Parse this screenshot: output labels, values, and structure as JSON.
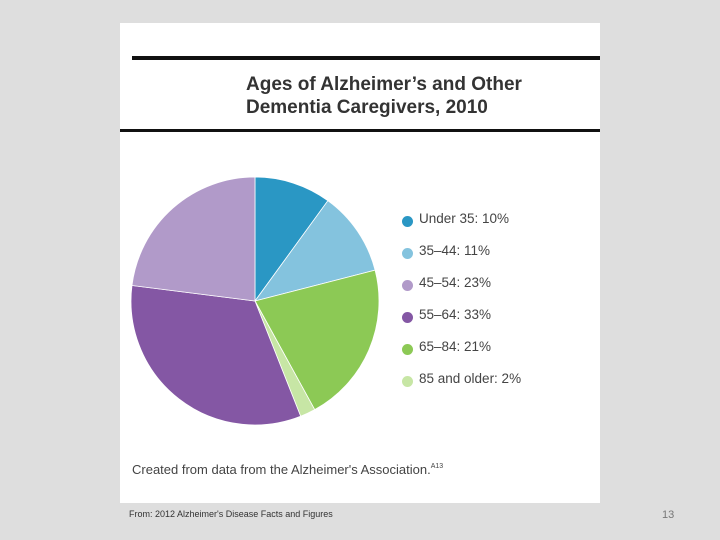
{
  "slide": {
    "footer": "From: 2012 Alzheimer's Disease Facts and Figures",
    "page_number": "13"
  },
  "source_note": {
    "text": "Created from data from the Alzheimer's Association.",
    "reference": "A13"
  },
  "chart_data": {
    "type": "pie",
    "title": "Ages of Alzheimer’s and Other Dementia Caregivers, 2010",
    "categories": [
      "Under 35",
      "35–44",
      "45–54",
      "55–64",
      "65–84",
      "85 and older"
    ],
    "values": [
      10,
      11,
      23,
      33,
      21,
      2
    ],
    "legend_labels": [
      "Under 35: 10%",
      "35–44: 11%",
      "45–54: 23%",
      "55–64: 33%",
      "65–84: 21%",
      "85 and older: 2%"
    ],
    "colors": [
      "#2a97c4",
      "#84c3de",
      "#b19ac9",
      "#8457a4",
      "#8cc955",
      "#c7e6a5"
    ],
    "slice_order_clockwise_from_top": [
      "Under 35",
      "35–44",
      "65–84",
      "85 and older",
      "55–64",
      "45–54"
    ],
    "legend_position": "right"
  }
}
